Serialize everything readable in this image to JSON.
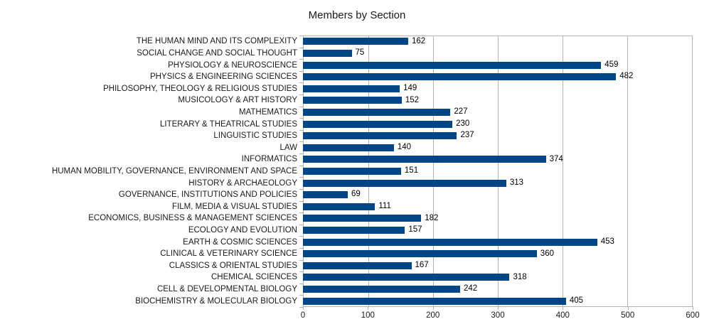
{
  "chart_data": {
    "type": "bar",
    "orientation": "horizontal",
    "title": "Members by Section",
    "categories": [
      "THE HUMAN MIND AND ITS COMPLEXITY",
      "SOCIAL CHANGE AND SOCIAL THOUGHT",
      "PHYSIOLOGY & NEUROSCIENCE",
      "PHYSICS & ENGINEERING SCIENCES",
      "PHILOSOPHY, THEOLOGY & RELIGIOUS STUDIES",
      "MUSICOLOGY & ART HISTORY",
      "MATHEMATICS",
      "LITERARY & THEATRICAL STUDIES",
      "LINGUISTIC STUDIES",
      "LAW",
      "INFORMATICS",
      "HUMAN MOBILITY, GOVERNANCE, ENVIRONMENT AND SPACE",
      "HISTORY & ARCHAEOLOGY",
      "GOVERNANCE, INSTITUTIONS AND POLICIES",
      "FILM, MEDIA & VISUAL STUDIES",
      "ECONOMICS, BUSINESS & MANAGEMENT SCIENCES",
      "ECOLOGY AND EVOLUTION",
      "EARTH & COSMIC SCIENCES",
      "CLINICAL & VETERINARY SCIENCE",
      "CLASSICS & ORIENTAL STUDIES",
      "CHEMICAL SCIENCES",
      "CELL & DEVELOPMENTAL BIOLOGY",
      "BIOCHEMISTRY & MOLECULAR BIOLOGY"
    ],
    "values": [
      162,
      75,
      459,
      482,
      149,
      152,
      227,
      230,
      237,
      140,
      374,
      151,
      313,
      69,
      111,
      182,
      157,
      453,
      360,
      167,
      318,
      242,
      405
    ],
    "xlabel": "",
    "ylabel": "",
    "xlim": [
      0,
      600
    ],
    "xticks": [
      0,
      100,
      200,
      300,
      400,
      500,
      600
    ],
    "grid": "vertical-only",
    "legend": "none",
    "value_labels": "end-of-bar",
    "colors": {
      "bar": "#004586",
      "grid": "#b3b3b3",
      "text": "#1a1a1a",
      "background": "#ffffff"
    }
  }
}
